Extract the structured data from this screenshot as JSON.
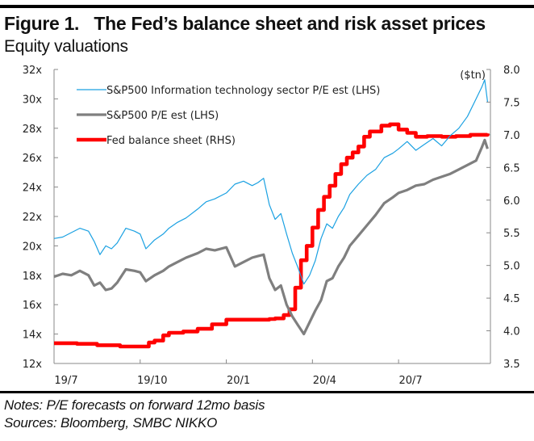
{
  "header": {
    "title": "Figure 1.   The Fed’s balance sheet and risk asset prices",
    "subtitle": "Equity valuations"
  },
  "footer": {
    "notes": "Notes: P/E forecasts on forward 12mo basis",
    "sources": "Sources: Bloomberg, SMBC NIKKO"
  },
  "chart_data": {
    "type": "line",
    "title": "The Fed’s balance sheet and risk asset prices",
    "subtitle": "Equity valuations",
    "x_unit": "months since 2019/7",
    "x_range": [
      0,
      15.2
    ],
    "x_ticks": [
      {
        "value": 0,
        "label": "19/7"
      },
      {
        "value": 3,
        "label": "19/10"
      },
      {
        "value": 6,
        "label": "20/1"
      },
      {
        "value": 9,
        "label": "20/4"
      },
      {
        "value": 12,
        "label": "20/7"
      }
    ],
    "y_left": {
      "range": [
        12,
        32
      ],
      "ticks": [
        12,
        14,
        16,
        18,
        20,
        22,
        24,
        26,
        28,
        30,
        32
      ],
      "tick_suffix": "x",
      "label": ""
    },
    "y_right": {
      "range": [
        3.5,
        8.0
      ],
      "ticks": [
        "3.5",
        "4.0",
        "4.5",
        "5.0",
        "5.5",
        "6.0",
        "6.5",
        "7.0",
        "7.5",
        "8.0"
      ],
      "label": "($tn)"
    },
    "legend_position": "top-left",
    "series": [
      {
        "name": "S&P500 Information technology sector P/E est (LHS)",
        "axis": "left",
        "color": "#1ba1e2",
        "style": "thin",
        "x": [
          0,
          0.3,
          0.6,
          0.9,
          1.2,
          1.4,
          1.6,
          1.8,
          2.0,
          2.2,
          2.5,
          2.8,
          3.0,
          3.2,
          3.5,
          3.8,
          4.0,
          4.3,
          4.6,
          5.0,
          5.3,
          5.6,
          6.0,
          6.3,
          6.6,
          6.9,
          7.1,
          7.3,
          7.5,
          7.7,
          7.9,
          8.1,
          8.3,
          8.5,
          8.7,
          8.9,
          9.1,
          9.3,
          9.5,
          9.7,
          9.9,
          10.1,
          10.3,
          10.6,
          10.9,
          11.2,
          11.5,
          11.8,
          12.0,
          12.3,
          12.6,
          12.9,
          13.2,
          13.5,
          13.8,
          14.1,
          14.4,
          14.7,
          14.9,
          15.0,
          15.1
        ],
        "y": [
          20.5,
          20.6,
          20.9,
          21.2,
          21.0,
          20.3,
          19.4,
          20.0,
          19.8,
          20.2,
          21.2,
          21.0,
          20.8,
          19.8,
          20.4,
          20.8,
          21.2,
          21.6,
          21.9,
          22.5,
          23.0,
          23.2,
          23.6,
          24.2,
          24.4,
          24.1,
          24.3,
          24.6,
          22.8,
          21.8,
          22.2,
          20.8,
          19.5,
          18.5,
          17.4,
          18.0,
          19.0,
          20.5,
          21.5,
          21.2,
          22.0,
          22.6,
          23.5,
          24.2,
          24.8,
          25.2,
          26.0,
          26.3,
          26.6,
          27.1,
          26.5,
          26.9,
          27.3,
          26.8,
          27.5,
          28.0,
          28.8,
          30.0,
          30.8,
          31.3,
          29.8
        ]
      },
      {
        "name": "S&P500 P/E est (LHS)",
        "axis": "left",
        "color": "#7f7f7f",
        "style": "medium",
        "x": [
          0,
          0.3,
          0.6,
          0.9,
          1.2,
          1.4,
          1.6,
          1.8,
          2.0,
          2.2,
          2.5,
          2.8,
          3.0,
          3.2,
          3.5,
          3.8,
          4.0,
          4.3,
          4.6,
          5.0,
          5.3,
          5.6,
          6.0,
          6.3,
          6.6,
          6.9,
          7.1,
          7.3,
          7.5,
          7.7,
          7.9,
          8.1,
          8.3,
          8.5,
          8.7,
          8.9,
          9.1,
          9.3,
          9.5,
          9.7,
          9.9,
          10.1,
          10.3,
          10.6,
          10.9,
          11.2,
          11.5,
          11.8,
          12.0,
          12.3,
          12.6,
          12.9,
          13.2,
          13.5,
          13.8,
          14.1,
          14.4,
          14.7,
          14.9,
          15.0,
          15.1
        ],
        "y": [
          17.9,
          18.1,
          18.0,
          18.3,
          18.0,
          17.3,
          17.5,
          17.0,
          17.1,
          17.5,
          18.4,
          18.3,
          18.2,
          17.6,
          18.0,
          18.3,
          18.6,
          18.9,
          19.2,
          19.5,
          19.8,
          19.7,
          19.9,
          18.6,
          18.9,
          19.2,
          19.3,
          19.4,
          17.8,
          17.0,
          17.3,
          16.0,
          15.2,
          14.6,
          14.0,
          14.8,
          15.6,
          16.3,
          17.6,
          17.8,
          18.6,
          19.2,
          20.0,
          20.7,
          21.4,
          22.1,
          22.9,
          23.3,
          23.6,
          23.8,
          24.1,
          24.2,
          24.5,
          24.7,
          24.9,
          25.2,
          25.5,
          25.8,
          26.7,
          27.2,
          26.6
        ]
      },
      {
        "name": "Fed balance sheet (RHS)",
        "axis": "right",
        "color": "#ff0000",
        "style": "thick",
        "x": [
          0,
          0.8,
          1.5,
          2.3,
          3.0,
          3.3,
          3.5,
          3.8,
          4.0,
          4.5,
          5.0,
          5.5,
          6.0,
          6.5,
          7.0,
          7.5,
          7.7,
          8.0,
          8.2,
          8.4,
          8.6,
          8.8,
          9.0,
          9.2,
          9.4,
          9.6,
          9.8,
          10.0,
          10.2,
          10.4,
          10.6,
          10.8,
          11.0,
          11.4,
          11.7,
          12.0,
          12.3,
          12.6,
          13.0,
          13.5,
          14.0,
          14.5,
          15.1
        ],
        "y": [
          3.81,
          3.8,
          3.78,
          3.76,
          3.76,
          3.82,
          3.85,
          3.93,
          3.97,
          3.99,
          4.03,
          4.1,
          4.17,
          4.17,
          4.17,
          4.18,
          4.19,
          4.24,
          4.33,
          4.66,
          5.08,
          5.3,
          5.58,
          5.85,
          6.05,
          6.22,
          6.4,
          6.55,
          6.65,
          6.73,
          6.82,
          6.97,
          7.05,
          7.14,
          7.16,
          7.08,
          7.03,
          6.97,
          6.98,
          6.97,
          6.98,
          7.0,
          7.02
        ]
      }
    ]
  }
}
